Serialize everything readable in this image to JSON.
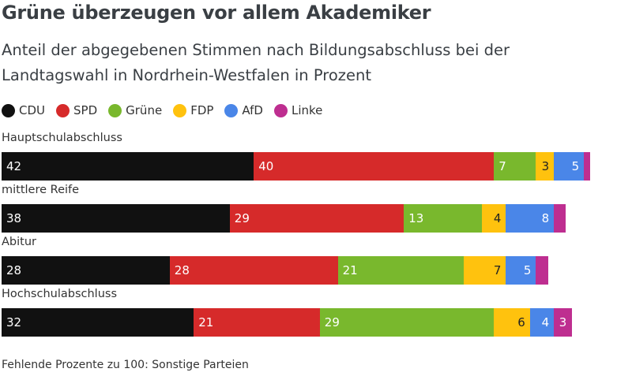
{
  "title": "Grüne überzeugen vor allem Akademiker",
  "subtitle": "Anteil der abgegebenen Stimmen nach Bildungsabschluss bei der Landtagswahl in Nordrhein-Westfalen in Prozent",
  "footnote": "Fehlende Prozente zu 100: Sonstige Parteien",
  "chart_data": {
    "type": "bar",
    "orientation": "horizontal",
    "stacked": true,
    "categories": [
      "Hauptschulabschluss",
      "mittlere Reife",
      "Abitur",
      "Hochschulabschluss"
    ],
    "series": [
      {
        "name": "CDU",
        "color": "#111111",
        "values": [
          42,
          38,
          28,
          32
        ]
      },
      {
        "name": "SPD",
        "color": "#d62a2a",
        "values": [
          40,
          29,
          28,
          21
        ]
      },
      {
        "name": "Grüne",
        "color": "#79b82d",
        "values": [
          7,
          13,
          21,
          29
        ]
      },
      {
        "name": "FDP",
        "color": "#ffc20e",
        "values": [
          3,
          4,
          7,
          6
        ]
      },
      {
        "name": "AfD",
        "color": "#4a86e8",
        "values": [
          5,
          8,
          5,
          4
        ]
      },
      {
        "name": "Linke",
        "color": "#be2e90",
        "values": [
          1,
          2,
          2,
          3
        ]
      }
    ],
    "labeled_values": [
      [
        42,
        40,
        7,
        3,
        5,
        null
      ],
      [
        38,
        29,
        13,
        4,
        8,
        null
      ],
      [
        28,
        28,
        21,
        7,
        5,
        null
      ],
      [
        32,
        21,
        29,
        6,
        4,
        3
      ]
    ],
    "xlim": [
      0,
      100
    ],
    "legend_position": "top-left",
    "grid": false
  }
}
